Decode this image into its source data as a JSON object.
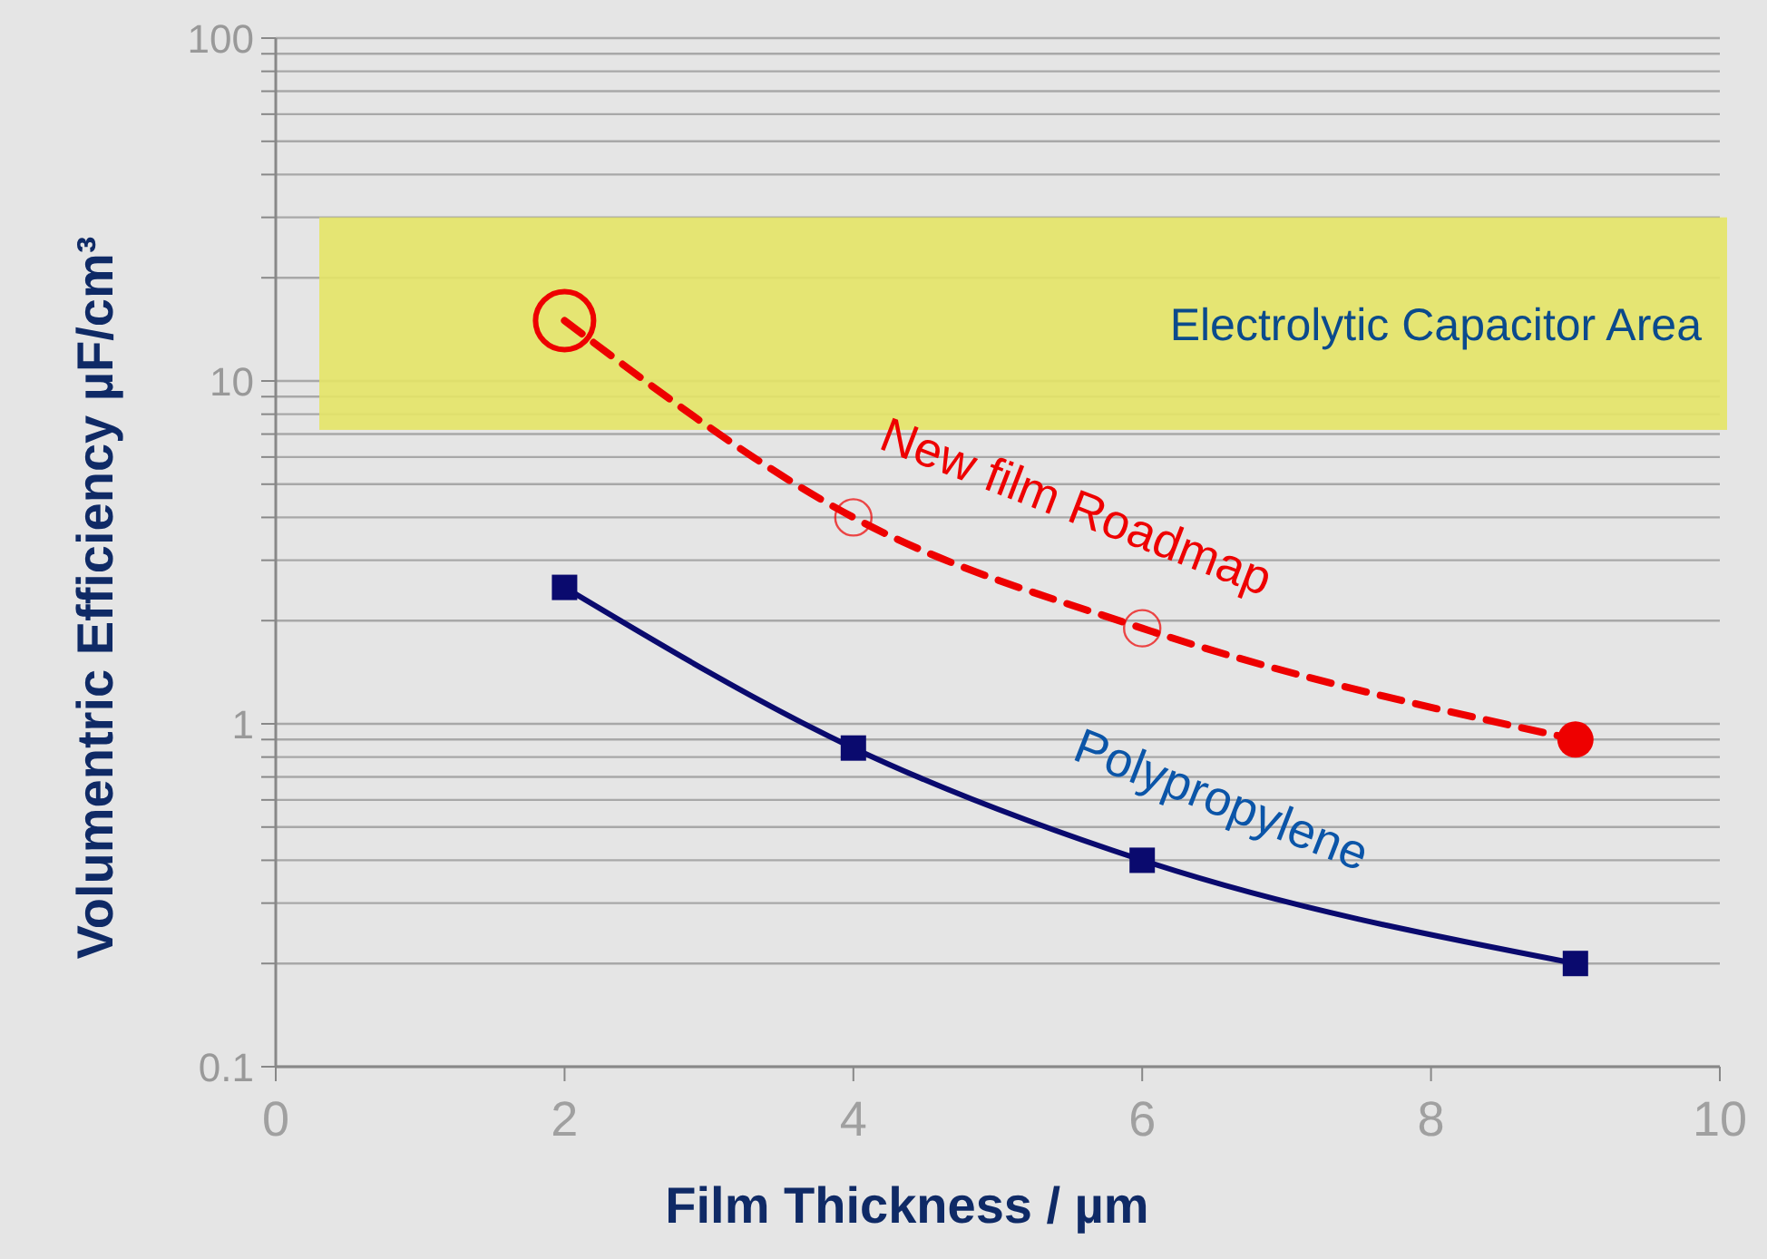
{
  "chart_data": {
    "type": "line",
    "xlabel": "Film Thickness / µm",
    "ylabel": "Volumentric Efficiency µF/cm³",
    "xlim": [
      0,
      10
    ],
    "xticks": [
      0,
      2,
      4,
      6,
      8,
      10
    ],
    "ylim": [
      0.1,
      100
    ],
    "yticks": [
      0.1,
      {
        "value": 0.2,
        "label": null
      },
      {
        "value": 0.3,
        "label": null
      },
      {
        "value": 0.4,
        "label": null
      },
      {
        "value": 0.5,
        "label": null
      },
      {
        "value": 0.6,
        "label": null
      },
      {
        "value": 0.7,
        "label": null
      },
      {
        "value": 0.8,
        "label": null
      },
      {
        "value": 0.9,
        "label": null
      },
      1,
      {
        "value": 2,
        "label": null
      },
      {
        "value": 3,
        "label": null
      },
      {
        "value": 4,
        "label": null
      },
      {
        "value": 5,
        "label": null
      },
      {
        "value": 6,
        "label": null
      },
      {
        "value": 7,
        "label": null
      },
      {
        "value": 8,
        "label": null
      },
      {
        "value": 9,
        "label": null
      },
      10,
      {
        "value": 20,
        "label": null
      },
      {
        "value": 30,
        "label": null
      },
      {
        "value": 40,
        "label": null
      },
      {
        "value": 50,
        "label": null
      },
      {
        "value": 60,
        "label": null
      },
      {
        "value": 70,
        "label": null
      },
      {
        "value": 80,
        "label": null
      },
      {
        "value": 90,
        "label": null
      },
      100
    ],
    "log": "y",
    "grid": "y",
    "bands": [
      {
        "axis": "y",
        "from": 7.2,
        "to": 30,
        "label": "Electrolytic Capacitor Area",
        "color": "#e4e466"
      }
    ],
    "series": [
      {
        "name": "New film Roadmap",
        "color": "#ee0000",
        "x": [
          2,
          4,
          6,
          9
        ],
        "values": [
          15,
          4,
          1.9,
          0.9
        ],
        "marker": "circle",
        "line_style": "dashed"
      },
      {
        "name": "Polypropylene",
        "color": "#0a0a6e",
        "x": [
          2,
          4,
          6,
          9
        ],
        "values": [
          2.5,
          0.85,
          0.4,
          0.2
        ],
        "marker": "square",
        "line_style": "solid"
      }
    ]
  }
}
